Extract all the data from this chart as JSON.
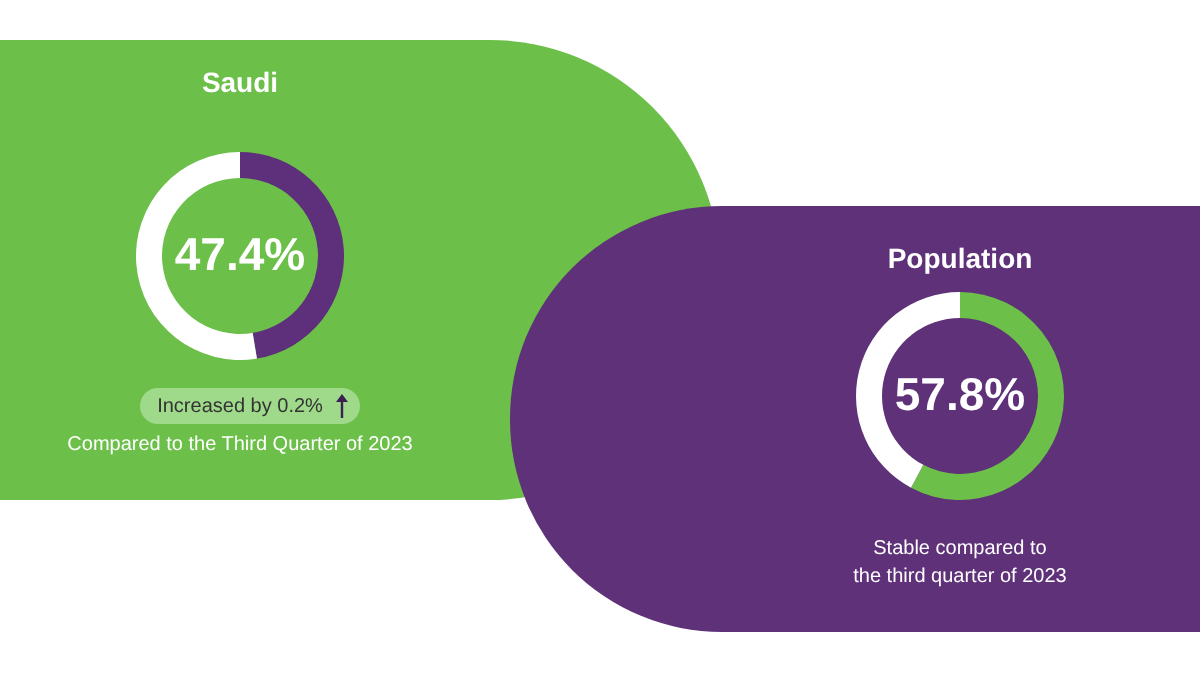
{
  "chart_data": [
    {
      "type": "donut",
      "title": "Saudi",
      "categories": [
        null,
        null
      ],
      "values": [
        47.4,
        52.6
      ],
      "colors": [
        "#5e2f7a",
        "#ffffff"
      ],
      "value_labels": [
        "47.4%",
        null
      ],
      "annotations": [
        "Increased by 0.2%",
        "Compared to the Third Quarter of 2023"
      ]
    },
    {
      "type": "donut",
      "title": "Population",
      "categories": [
        null,
        null
      ],
      "values": [
        57.8,
        42.2
      ],
      "colors": [
        "#6cc04a",
        "#ffffff"
      ],
      "value_labels": [
        "57.8%",
        null
      ],
      "annotations": [
        "Stable compared to",
        "the third quarter of 2023"
      ]
    }
  ]
}
